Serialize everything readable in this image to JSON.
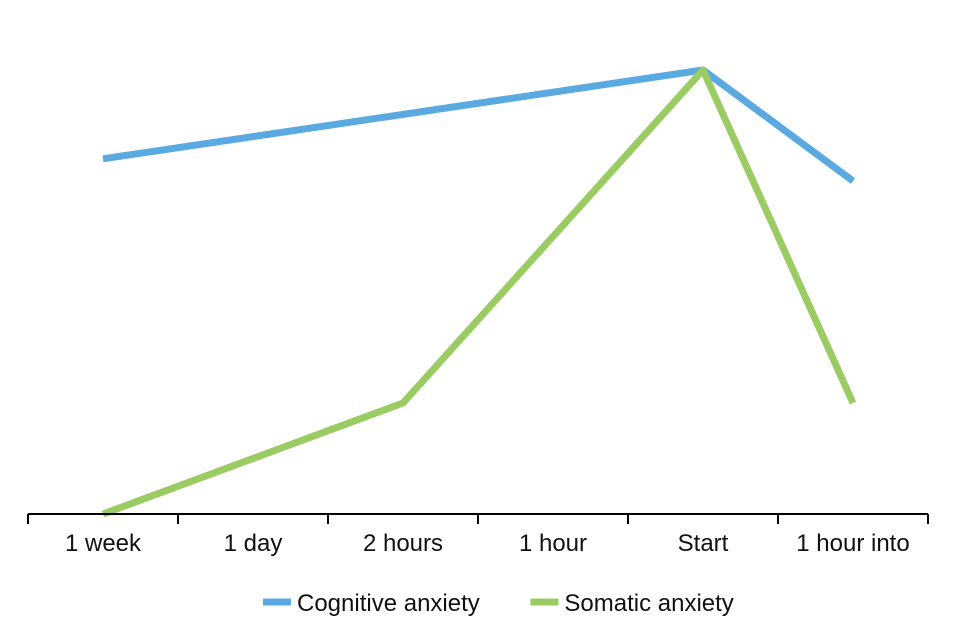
{
  "chart_data": {
    "type": "line",
    "title": "",
    "xlabel": "",
    "ylabel": "",
    "categories": [
      "1 week",
      "1 day",
      "2 hours",
      "1 hour",
      "Start",
      "1 hour into"
    ],
    "ylim": [
      0,
      100
    ],
    "grid": false,
    "legend_position": "bottom",
    "series": [
      {
        "name": "Cognitive anxiety",
        "color": "#5AA9E0",
        "values": [
          80,
          null,
          null,
          null,
          100,
          75
        ],
        "connect_gaps": true
      },
      {
        "name": "Somatic anxiety",
        "color": "#9BCB63",
        "values": [
          0,
          null,
          25,
          null,
          100,
          25
        ],
        "connect_gaps": true
      }
    ]
  }
}
